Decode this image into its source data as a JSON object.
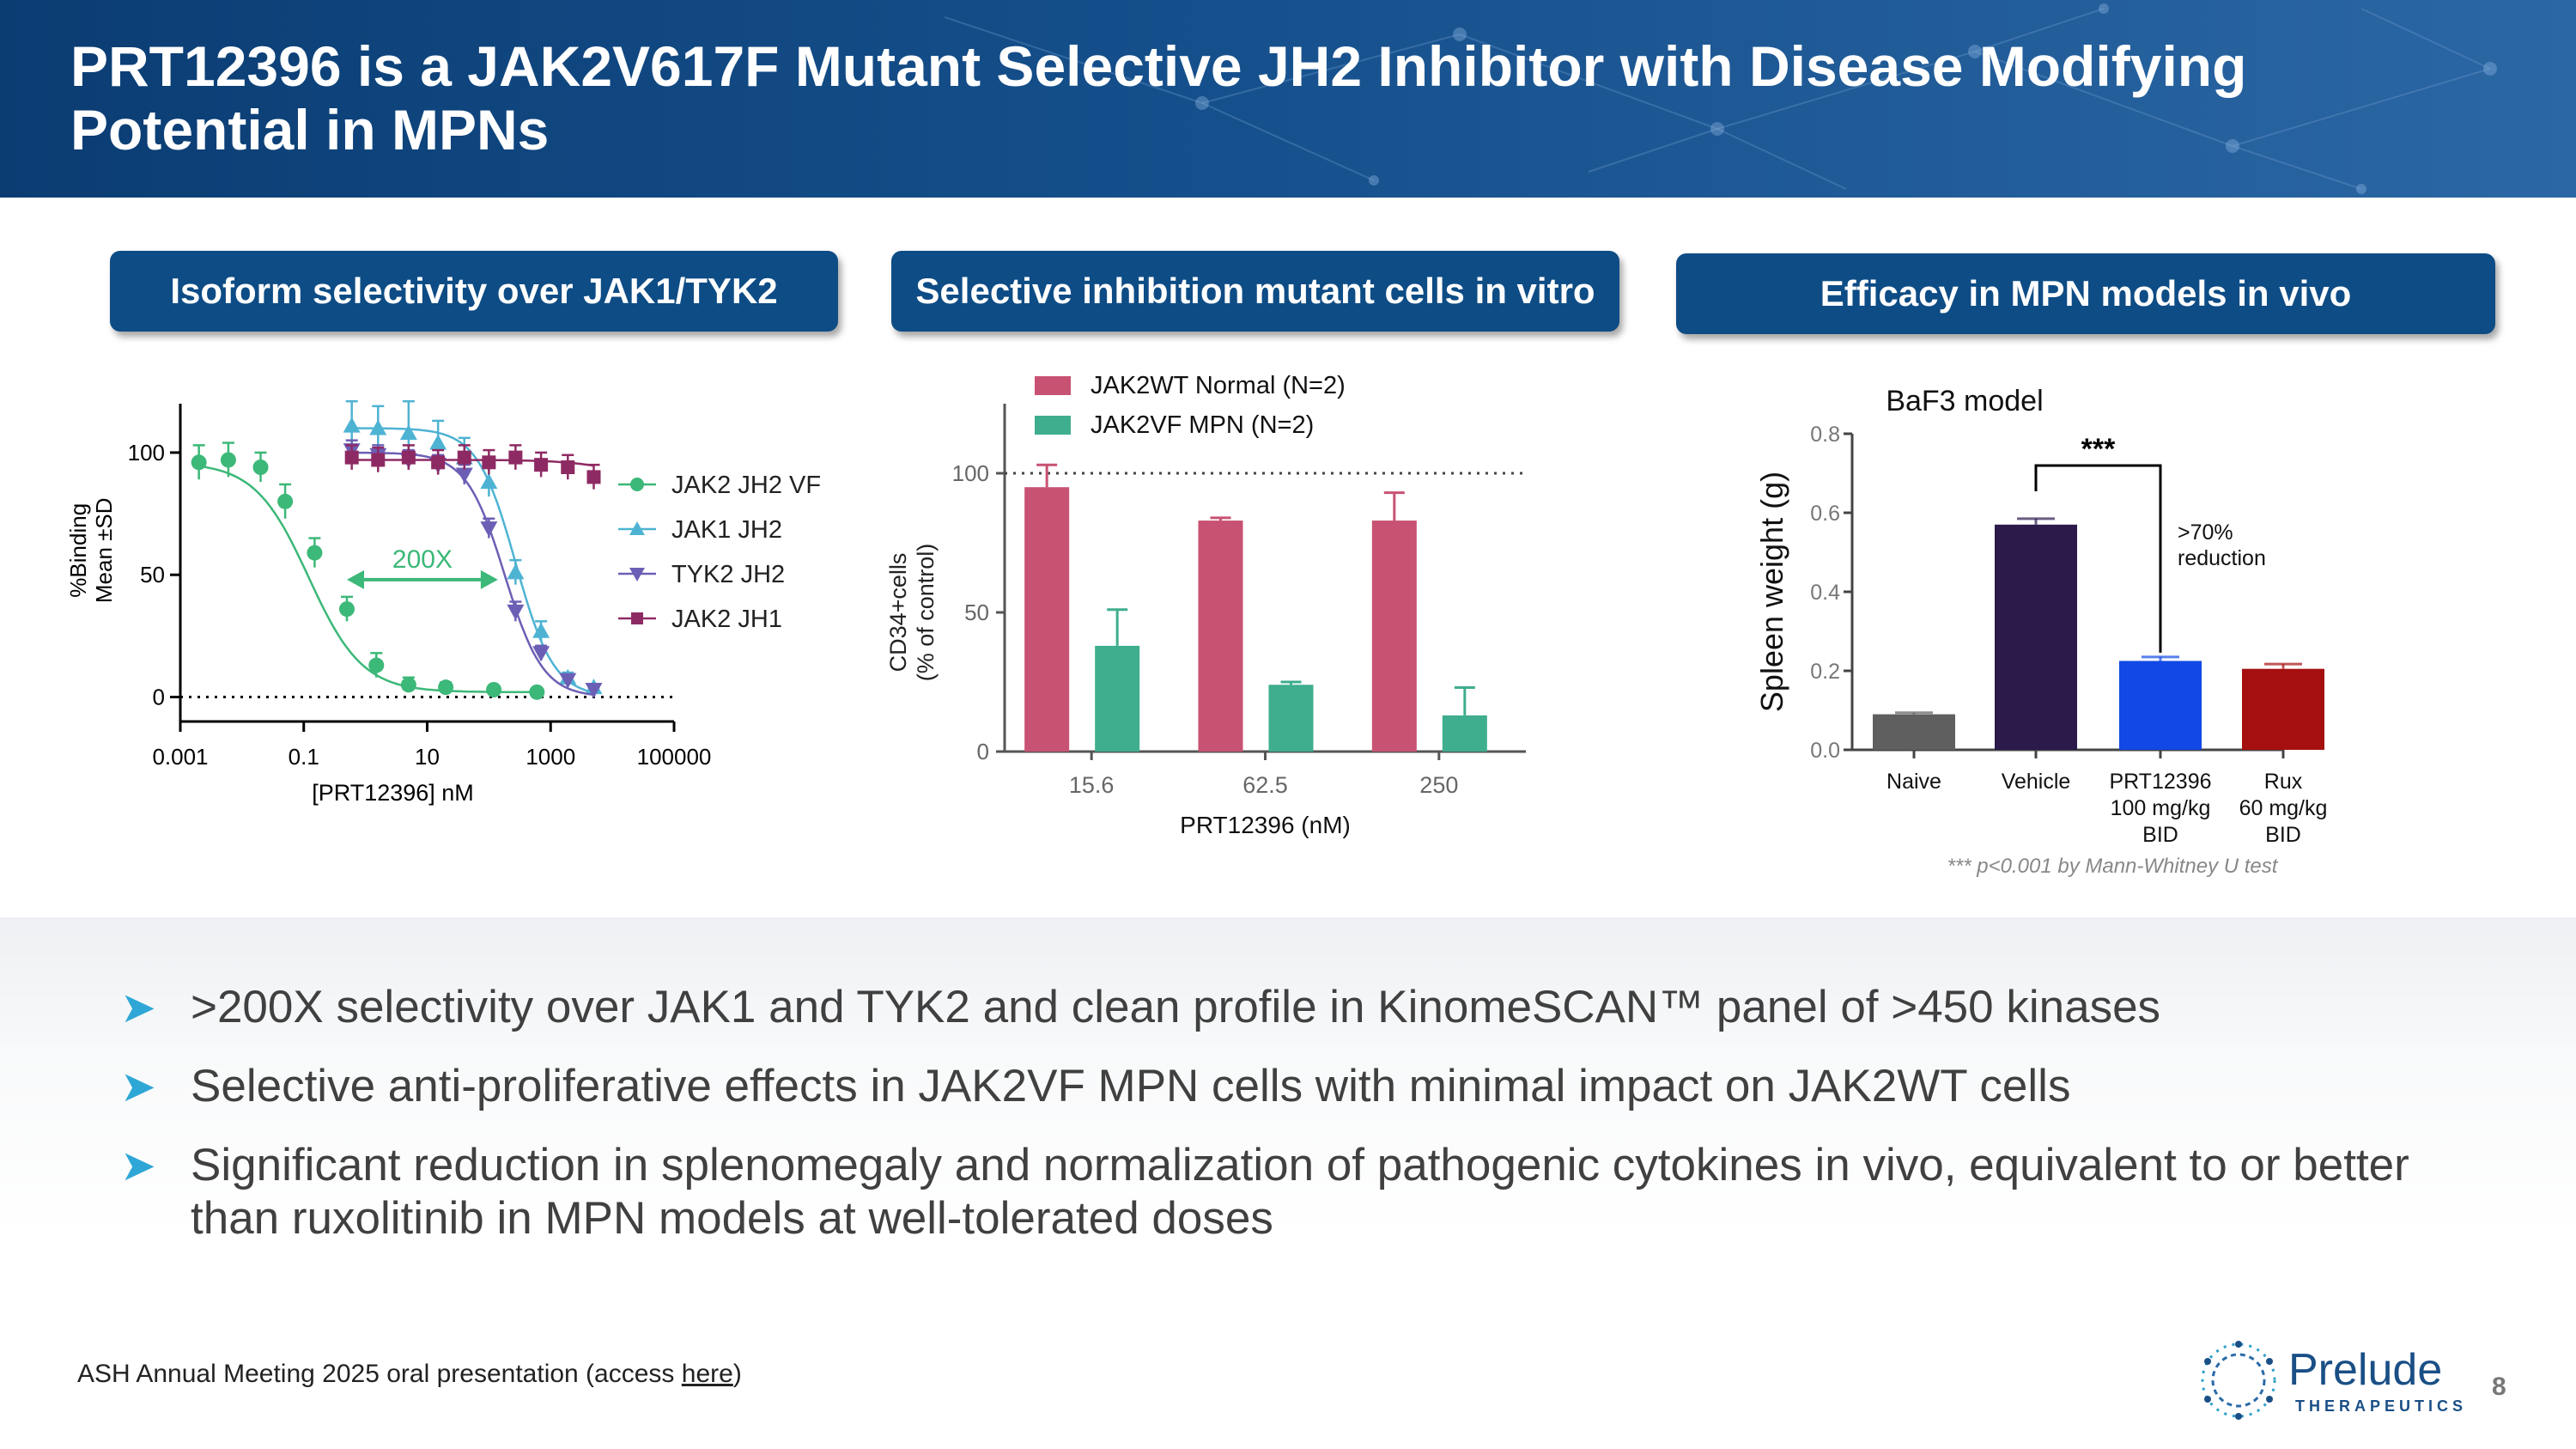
{
  "slide": {
    "title": "PRT12396 is a JAK2V617F Mutant Selective JH2 Inhibitor with Disease Modifying Potential in MPNs",
    "page_number": "8"
  },
  "panels": [
    {
      "label": "Isoform selectivity over JAK1/TYK2"
    },
    {
      "label": "Selective inhibition mutant cells in vitro"
    },
    {
      "label": "Efficacy in  MPN models in vivo"
    }
  ],
  "chart_data": [
    {
      "type": "scatter",
      "xlabel": "[PRT12396] nM",
      "ylabel_lines": [
        "%Binding",
        "Mean ±SD"
      ],
      "x_scale": "log",
      "xlim": [
        0.001,
        100000
      ],
      "ylim": [
        -10,
        120
      ],
      "x_ticks": [
        0.001,
        0.1,
        10,
        1000,
        100000
      ],
      "x_tick_labels": [
        "0.001",
        "0.1",
        "10",
        "1000",
        "100000"
      ],
      "y_ticks": [
        0,
        50,
        100
      ],
      "y_tick_labels": [
        "0",
        "50",
        "100"
      ],
      "reference_line_y": 0,
      "annotation": "200X",
      "legend_position": "right",
      "series": [
        {
          "name": "JAK2 JH2 VF",
          "color": "#3cb878",
          "marker": "circle",
          "x": [
            0.002,
            0.006,
            0.02,
            0.05,
            0.15,
            0.5,
            1.5,
            5,
            20,
            120,
            600
          ],
          "y": [
            96,
            97,
            94,
            80,
            59,
            36,
            13,
            5,
            4,
            3,
            2
          ],
          "err": [
            7,
            7,
            6,
            7,
            6,
            5,
            5,
            3,
            2,
            1,
            1
          ]
        },
        {
          "name": "JAK1 JH2",
          "color": "#4eb3d3",
          "marker": "triangle-up",
          "x": [
            0.6,
            1.6,
            5,
            15,
            40,
            100,
            270,
            700,
            1900,
            5000
          ],
          "y": [
            111,
            110,
            108,
            104,
            98,
            88,
            51,
            27,
            8,
            4
          ],
          "err": [
            10,
            9,
            13,
            9,
            8,
            6,
            5,
            4,
            2,
            1
          ]
        },
        {
          "name": "TYK2 JH2",
          "color": "#6b5fb5",
          "marker": "triangle-down",
          "x": [
            0.6,
            1.6,
            5,
            15,
            40,
            100,
            270,
            700,
            1900,
            5000
          ],
          "y": [
            101,
            99,
            97,
            95,
            91,
            69,
            35,
            18,
            7,
            3
          ],
          "err": [
            4,
            4,
            4,
            4,
            4,
            4,
            4,
            3,
            2,
            1
          ]
        },
        {
          "name": "JAK2 JH1",
          "color": "#8e2a63",
          "marker": "square",
          "x": [
            0.6,
            1.6,
            5,
            15,
            40,
            100,
            270,
            700,
            1900,
            5000
          ],
          "y": [
            98,
            97,
            98,
            96,
            98,
            96,
            98,
            95,
            94,
            90
          ],
          "err": [
            5,
            5,
            5,
            5,
            5,
            5,
            5,
            5,
            5,
            5
          ]
        }
      ]
    },
    {
      "type": "bar",
      "xlabel": "PRT12396 (nM)",
      "ylabel_lines": [
        "CD34+cells",
        "(% of control)"
      ],
      "categories": [
        "15.6",
        "62.5",
        "250"
      ],
      "ylim": [
        0,
        125
      ],
      "y_ticks": [
        0,
        50,
        100
      ],
      "y_tick_labels": [
        "0",
        "50",
        "100"
      ],
      "reference_line_y": 100,
      "legend_position": "top-left",
      "series": [
        {
          "name": "JAK2WT Normal (N=2)",
          "color": "#c85272",
          "values": [
            95,
            83,
            83
          ],
          "err": [
            8,
            1,
            10
          ]
        },
        {
          "name": "JAK2VF MPN (N=2)",
          "color": "#3eae8e",
          "values": [
            38,
            24,
            13
          ],
          "err": [
            13,
            1,
            10
          ]
        }
      ]
    },
    {
      "type": "bar",
      "title": "BaF3 model",
      "ylabel": "Spleen weight (g)",
      "categories": [
        [
          "Naive"
        ],
        [
          "Vehicle"
        ],
        [
          "PRT12396",
          "100 mg/kg",
          "BID"
        ],
        [
          "Rux",
          "60 mg/kg",
          "BID"
        ]
      ],
      "values": [
        0.09,
        0.57,
        0.225,
        0.205
      ],
      "err": [
        0.004,
        0.015,
        0.01,
        0.012
      ],
      "colors": [
        "#5f5f5f",
        "#2b1a4a",
        "#1148e6",
        "#a50f0f"
      ],
      "ylim": [
        0,
        0.8
      ],
      "y_ticks": [
        0.0,
        0.2,
        0.4,
        0.6,
        0.8
      ],
      "y_tick_labels": [
        "0.0",
        "0.2",
        "0.4",
        "0.6",
        "0.8"
      ],
      "significance": "***",
      "reduction_note_lines": [
        ">70%",
        "reduction"
      ],
      "footnote": "*** p<0.001 by Mann-Whitney U test"
    }
  ],
  "bullets": [
    ">200X selectivity over JAK1 and TYK2 and clean profile in KinomeSCAN™ panel of >450 kinases",
    "Selective anti-proliferative effects in JAK2VF MPN cells with minimal impact on JAK2WT cells",
    "Significant reduction in splenomegaly and normalization of pathogenic cytokines in vivo, equivalent to or better than ruxolitinib in MPN models at well-tolerated doses"
  ],
  "footer": {
    "text": "ASH Annual Meeting 2025 oral presentation (access ",
    "link": "here",
    "close": ")"
  },
  "logo": {
    "name": "Prelude",
    "sub": "THERAPEUTICS"
  }
}
